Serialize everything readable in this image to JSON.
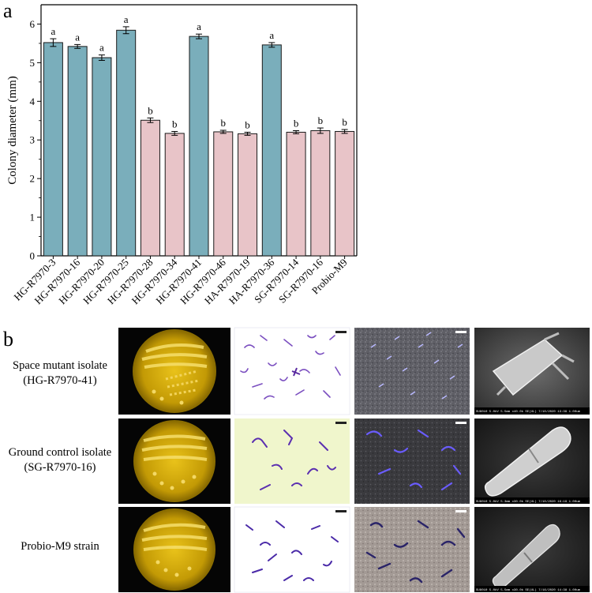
{
  "panels": {
    "a_label": "a",
    "b_label": "b"
  },
  "chart_data": {
    "type": "bar",
    "categories": [
      "HG-R7970-3",
      "HG-R7970-16",
      "HG-R7970-20",
      "HG-R7970-25",
      "HG-R7970-28",
      "HG-R7970-34",
      "HG-R7970-41",
      "HG-R7970-46",
      "HA-R7970-19",
      "HA-R7970-36",
      "SG-R7970-14",
      "SG-R7970-16",
      "Probio-M9"
    ],
    "values": [
      5.52,
      5.42,
      5.13,
      5.84,
      3.51,
      3.17,
      5.68,
      3.21,
      3.16,
      5.46,
      3.2,
      3.24,
      3.22
    ],
    "errors": [
      0.1,
      0.05,
      0.07,
      0.09,
      0.06,
      0.05,
      0.06,
      0.04,
      0.04,
      0.06,
      0.04,
      0.07,
      0.05
    ],
    "significance": [
      "a",
      "a",
      "a",
      "a",
      "b",
      "b",
      "a",
      "b",
      "b",
      "a",
      "b",
      "b",
      "b"
    ],
    "bar_colors": [
      "#7aaebb",
      "#7aaebb",
      "#7aaebb",
      "#7aaebb",
      "#e8c4c8",
      "#e8c4c8",
      "#7aaebb",
      "#e8c4c8",
      "#e8c4c8",
      "#7aaebb",
      "#e8c4c8",
      "#e8c4c8",
      "#e8c4c8"
    ],
    "title": "",
    "xlabel": "",
    "ylabel": "Colony diameter (mm)",
    "ylim": [
      0,
      6.5
    ],
    "yticks": [
      0,
      1,
      2,
      3,
      4,
      5,
      6
    ],
    "grid": false
  },
  "image_grid": {
    "rows": [
      {
        "label_line1": "Space mutant isolate",
        "label_line2": "(HG-R7970-41)",
        "sem_caption": "SU8010 5.0kV 5.5mm x40.0k SE(UL) 7/10/2020 13:39      1.00um"
      },
      {
        "label_line1": "Ground control isolate",
        "label_line2": "(SG-R7970-16)",
        "sem_caption": "SU8010 5.0kV 5.3mm x30.0k SE(UL) 7/10/2020 16:19      1.00um"
      },
      {
        "label_line1": "Probio-M9 strain",
        "label_line2": "",
        "sem_caption": "SU8010 5.0kV 5.5mm x30.0k SE(UL) 7/16/2020 14:38      1.00um"
      }
    ]
  },
  "colors": {
    "blue_bar": "#7aaebb",
    "pink_bar": "#e8c4c8",
    "gram_stain": "#6a3fb0",
    "plate_agar": "#c9a200"
  }
}
